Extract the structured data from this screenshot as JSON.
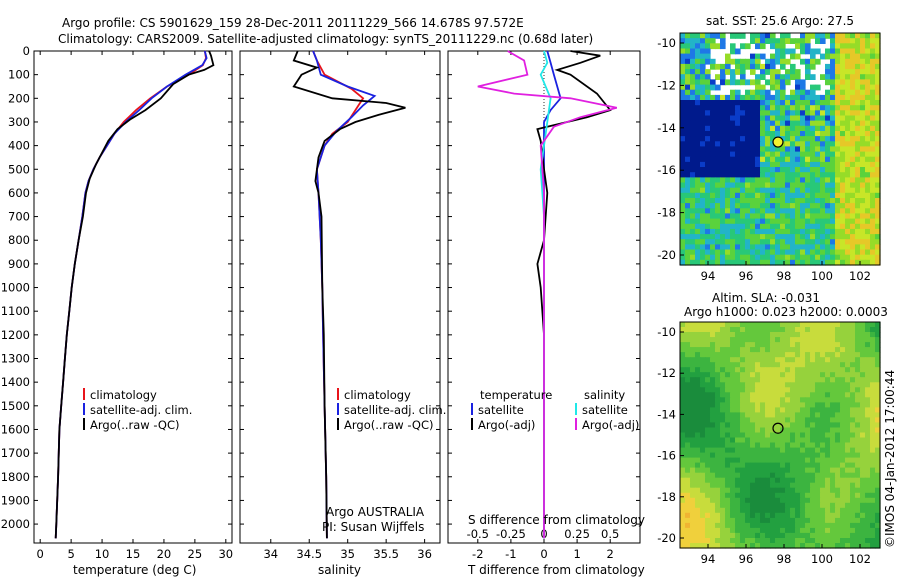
{
  "title_line1": "Argo profile: CS 5901629_159 28-Dec-2011 20111229_566 14.678S 97.572E",
  "title_line2": "Climatology: CARS2009. Satellite-adjusted climatology: synTS_20111229.nc (0.68d later)",
  "colors": {
    "climatology": "#e8141b",
    "satellite": "#1a22e0",
    "argo": "#000000",
    "sat_s": "#20e8e8",
    "argo_s": "#e020e0"
  },
  "chart_data": [
    {
      "type": "line",
      "name": "temperature",
      "xlabel": "temperature (deg C)",
      "xlim": [
        -1,
        31
      ],
      "xticks": [
        0,
        5,
        10,
        15,
        20,
        25,
        30
      ],
      "ylim": [
        2080,
        0
      ],
      "yticks": [
        0,
        100,
        200,
        300,
        400,
        500,
        600,
        700,
        800,
        900,
        1000,
        1100,
        1200,
        1300,
        1400,
        1500,
        1600,
        1700,
        1800,
        1900,
        2000
      ],
      "legend": [
        "climatology",
        "satellite-adj. clim.",
        "Argo(..raw -QC)"
      ],
      "series": [
        {
          "name": "climatology",
          "color": "#e8141b",
          "points": [
            [
              26.6,
              0
            ],
            [
              26.8,
              30
            ],
            [
              26.3,
              60
            ],
            [
              24,
              100
            ],
            [
              20.5,
              150
            ],
            [
              17.8,
              200
            ],
            [
              15.5,
              250
            ],
            [
              13.5,
              300
            ],
            [
              12,
              350
            ],
            [
              10.8,
              400
            ],
            [
              9.6,
              450
            ],
            [
              8.6,
              500
            ],
            [
              7.8,
              550
            ],
            [
              7.3,
              600
            ],
            [
              6.8,
              700
            ],
            [
              6.2,
              800
            ],
            [
              5.6,
              900
            ],
            [
              5.1,
              1000
            ],
            [
              4.7,
              1100
            ],
            [
              4.3,
              1200
            ],
            [
              4,
              1300
            ],
            [
              3.7,
              1400
            ],
            [
              3.4,
              1500
            ],
            [
              3.1,
              1600
            ],
            [
              2.9,
              1800
            ],
            [
              2.6,
              2000
            ],
            [
              2.5,
              2060
            ]
          ]
        },
        {
          "name": "satellite",
          "color": "#1a22e0",
          "points": [
            [
              26.6,
              0
            ],
            [
              26.9,
              30
            ],
            [
              26.2,
              60
            ],
            [
              23.5,
              100
            ],
            [
              20.5,
              150
            ],
            [
              18,
              200
            ],
            [
              16,
              250
            ],
            [
              13.8,
              300
            ],
            [
              12,
              350
            ],
            [
              10.8,
              400
            ],
            [
              9.6,
              450
            ],
            [
              8.6,
              500
            ],
            [
              7.8,
              550
            ],
            [
              7.3,
              600
            ],
            [
              6.8,
              700
            ],
            [
              6.2,
              800
            ],
            [
              5.6,
              900
            ],
            [
              5.1,
              1000
            ],
            [
              4.7,
              1100
            ],
            [
              4.3,
              1200
            ],
            [
              4,
              1300
            ],
            [
              3.7,
              1400
            ],
            [
              3.4,
              1500
            ],
            [
              3.1,
              1600
            ],
            [
              2.9,
              1800
            ],
            [
              2.6,
              2000
            ],
            [
              2.5,
              2060
            ]
          ]
        },
        {
          "name": "argo",
          "color": "#000000",
          "points": [
            [
              27.3,
              0
            ],
            [
              27.6,
              20
            ],
            [
              28,
              60
            ],
            [
              26.5,
              80
            ],
            [
              24,
              100
            ],
            [
              21.5,
              140
            ],
            [
              19.5,
              200
            ],
            [
              17,
              250
            ],
            [
              14.5,
              290
            ],
            [
              12.5,
              330
            ],
            [
              11,
              380
            ],
            [
              10,
              430
            ],
            [
              9,
              480
            ],
            [
              8,
              540
            ],
            [
              7.4,
              600
            ],
            [
              6.9,
              700
            ],
            [
              6.2,
              800
            ],
            [
              5.6,
              900
            ],
            [
              5.1,
              1000
            ],
            [
              4.7,
              1100
            ],
            [
              4.3,
              1200
            ],
            [
              4,
              1300
            ],
            [
              3.7,
              1400
            ],
            [
              3.4,
              1500
            ],
            [
              3.1,
              1600
            ],
            [
              2.9,
              1800
            ],
            [
              2.6,
              2000
            ],
            [
              2.5,
              2060
            ]
          ]
        }
      ]
    },
    {
      "type": "line",
      "name": "salinity",
      "xlabel": "salinity",
      "xlim": [
        33.6,
        36.2
      ],
      "xticks": [
        34,
        34.5,
        35,
        35.5,
        36
      ],
      "ylim": [
        2080,
        0
      ],
      "legend": [
        "climatology",
        "satellite-adj. clim.",
        "Argo(..raw -QC)"
      ],
      "series": [
        {
          "name": "climatology",
          "color": "#e8141b",
          "points": [
            [
              34.55,
              0
            ],
            [
              34.6,
              40
            ],
            [
              34.7,
              100
            ],
            [
              35.05,
              160
            ],
            [
              35.2,
              200
            ],
            [
              35.1,
              250
            ],
            [
              35,
              300
            ],
            [
              34.8,
              350
            ],
            [
              34.7,
              400
            ],
            [
              34.6,
              500
            ],
            [
              34.62,
              600
            ],
            [
              34.65,
              800
            ],
            [
              34.67,
              1000
            ],
            [
              34.68,
              1200
            ],
            [
              34.7,
              1500
            ],
            [
              34.72,
              1800
            ],
            [
              34.73,
              2060
            ]
          ]
        },
        {
          "name": "satellite",
          "color": "#1a22e0",
          "points": [
            [
              34.55,
              0
            ],
            [
              34.6,
              40
            ],
            [
              34.65,
              100
            ],
            [
              35,
              150
            ],
            [
              35.35,
              190
            ],
            [
              35.2,
              230
            ],
            [
              35.05,
              280
            ],
            [
              34.85,
              340
            ],
            [
              34.7,
              400
            ],
            [
              34.6,
              500
            ],
            [
              34.62,
              600
            ],
            [
              34.65,
              800
            ],
            [
              34.67,
              1000
            ],
            [
              34.68,
              1200
            ],
            [
              34.7,
              1500
            ],
            [
              34.72,
              1800
            ],
            [
              34.73,
              2060
            ]
          ]
        },
        {
          "name": "argo",
          "color": "#000000",
          "points": [
            [
              34.35,
              0
            ],
            [
              34.3,
              40
            ],
            [
              34.6,
              70
            ],
            [
              34.4,
              100
            ],
            [
              34.3,
              150
            ],
            [
              34.8,
              200
            ],
            [
              35.5,
              220
            ],
            [
              35.75,
              240
            ],
            [
              35.4,
              270
            ],
            [
              35.1,
              300
            ],
            [
              34.9,
              330
            ],
            [
              34.7,
              380
            ],
            [
              34.62,
              450
            ],
            [
              34.58,
              550
            ],
            [
              34.62,
              600
            ],
            [
              34.66,
              700
            ],
            [
              34.67,
              1000
            ],
            [
              34.69,
              1200
            ],
            [
              34.7,
              1500
            ],
            [
              34.72,
              1800
            ],
            [
              34.73,
              2060
            ]
          ]
        }
      ]
    },
    {
      "type": "line",
      "name": "difference",
      "xlabel_top": "S difference from climatology",
      "xticks_top": [
        "-0.5",
        "-0.25",
        "0",
        "0.25",
        "0.5"
      ],
      "xlabel": "T difference from climatology",
      "xlim": [
        -2.9,
        2.9
      ],
      "xticks": [
        -2,
        -1,
        0,
        1,
        2
      ],
      "ylim": [
        2080,
        0
      ],
      "legend_t": [
        "temperature",
        "satellite",
        "Argo(-adj)"
      ],
      "legend_s": [
        "salinity",
        "satellite",
        "Argo(-adj)"
      ],
      "series": [
        {
          "name": "T satellite",
          "color": "#1a22e0",
          "points": [
            [
              0.1,
              0
            ],
            [
              0.2,
              50
            ],
            [
              0.3,
              100
            ],
            [
              0.5,
              200
            ],
            [
              0.2,
              250
            ],
            [
              0,
              300
            ],
            [
              0,
              400
            ],
            [
              0,
              600
            ],
            [
              0,
              1000
            ],
            [
              0,
              2060
            ]
          ]
        },
        {
          "name": "T argo",
          "color": "#000000",
          "points": [
            [
              0.8,
              0
            ],
            [
              1.7,
              20
            ],
            [
              1.1,
              50
            ],
            [
              0.4,
              80
            ],
            [
              0.8,
              100
            ],
            [
              1.6,
              180
            ],
            [
              2,
              250
            ],
            [
              1.3,
              280
            ],
            [
              -0.2,
              330
            ],
            [
              -0.1,
              380
            ],
            [
              0,
              500
            ],
            [
              0.1,
              600
            ],
            [
              0,
              800
            ],
            [
              -0.2,
              900
            ],
            [
              -0.1,
              1000
            ],
            [
              0,
              1200
            ],
            [
              0,
              2060
            ]
          ]
        },
        {
          "name": "S satellite",
          "color": "#20e8e8",
          "points": [
            [
              0,
              0
            ],
            [
              0.1,
              50
            ],
            [
              -0.1,
              100
            ],
            [
              0.2,
              200
            ],
            [
              0.1,
              300
            ],
            [
              0,
              400
            ],
            [
              -0.1,
              500
            ],
            [
              0,
              700
            ],
            [
              0,
              1000
            ],
            [
              0,
              2060
            ]
          ]
        },
        {
          "name": "S argo",
          "color": "#e020e0",
          "points": [
            [
              -1.1,
              0
            ],
            [
              -0.6,
              40
            ],
            [
              -0.5,
              100
            ],
            [
              -2,
              150
            ],
            [
              -0.9,
              180
            ],
            [
              0.8,
              200
            ],
            [
              2.2,
              240
            ],
            [
              1.1,
              280
            ],
            [
              0.3,
              320
            ],
            [
              -0.1,
              400
            ],
            [
              0,
              600
            ],
            [
              0,
              1000
            ],
            [
              0,
              2060
            ]
          ]
        }
      ]
    }
  ],
  "sst_title": "sat. SST: 25.6 Argo: 27.5",
  "sla_title_1": "Altim. SLA: -0.031",
  "sla_title_2": "Argo h1000: 0.023 h2000: 0.0003",
  "map_yticks": [
    "-10",
    "-12",
    "-14",
    "-16",
    "-18",
    "-20"
  ],
  "map_xticks": [
    "94",
    "96",
    "98",
    "100",
    "102"
  ],
  "argo_label_1": "Argo AUSTRALIA",
  "argo_label_2": "PI: Susan Wijffels",
  "footer": "©IMOS 04-Jan-2012 17:00:44"
}
